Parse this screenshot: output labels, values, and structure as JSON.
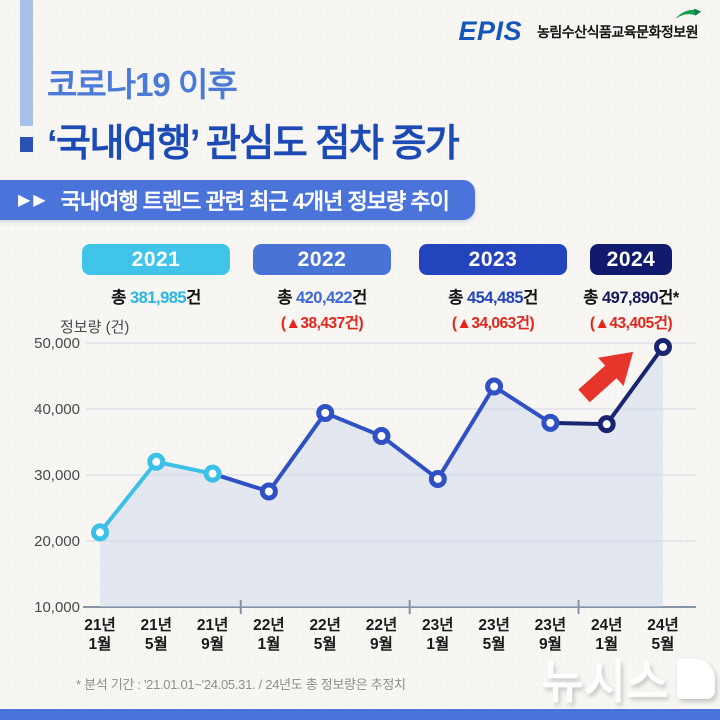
{
  "header": {
    "logo_text": "EPIS",
    "org_name": "농림수산식품교육문화정보원",
    "title_line1": "코로나19 이후",
    "title_line2": "‘국내여행’ 관심도 점차 증가"
  },
  "banner": {
    "arrows": "▶▶",
    "label": "국내여행 트렌드 관련 최근 4개년 정보량 추이"
  },
  "year_cards": [
    {
      "year": "2021",
      "badge_color": "#41c4ea",
      "total_label": "총",
      "total_value": "381,985",
      "unit": "건",
      "value_color": "#29b5e5",
      "delta": ""
    },
    {
      "year": "2022",
      "badge_color": "#4a73d8",
      "total_label": "총",
      "total_value": "420,422",
      "unit": "건",
      "value_color": "#3e68d6",
      "delta": "(▲38,437건)"
    },
    {
      "year": "2023",
      "badge_color": "#2444be",
      "total_label": "총",
      "total_value": "454,485",
      "unit": "건",
      "value_color": "#2144c0",
      "delta": "(▲34,063건)"
    },
    {
      "year": "2024",
      "badge_color": "#111b6e",
      "total_label": "총",
      "total_value": "497,890",
      "unit": "건*",
      "value_color": "#15195a",
      "delta": "(▲43,405건)"
    }
  ],
  "chart_data": {
    "type": "line",
    "ylabel": "정보량 (건)",
    "x_labels": [
      "21년 1월",
      "21년 5월",
      "21년 9월",
      "22년 1월",
      "22년 5월",
      "22년 9월",
      "23년 1월",
      "23년 5월",
      "23년 9월",
      "24년 1월",
      "24년 5월"
    ],
    "values": [
      21300,
      32000,
      30200,
      27500,
      39400,
      35900,
      29400,
      43400,
      37900,
      37700,
      49400
    ],
    "ylim": [
      10000,
      50000
    ],
    "yticks": [
      10000,
      20000,
      30000,
      40000,
      50000
    ],
    "grid": true,
    "point_colors": [
      "cyan",
      "cyan",
      "cyan",
      "royal",
      "royal",
      "royal",
      "royal",
      "royal",
      "royal",
      "navy",
      "navy"
    ],
    "segment_colors": [
      "cyan",
      "cyan",
      "royal",
      "royal",
      "royal",
      "royal",
      "royal",
      "royal",
      "navy",
      "navy"
    ],
    "palette": {
      "cyan": "#3bc0e8",
      "royal": "#2f51c5",
      "navy": "#1a2572"
    },
    "area_fill": "#c9d4ec",
    "year_group_dividers_after_index": [
      2,
      5,
      8
    ],
    "annotation": {
      "type": "arrow-up-right",
      "color": "#e8352b",
      "between_points": [
        9,
        10
      ]
    }
  },
  "footnote": {
    "text": "* 분석 기간 : '21.01.01~'24.05.31. / 24년도 총 정보량은 추정치"
  },
  "watermark": {
    "text": "뉴시스"
  }
}
